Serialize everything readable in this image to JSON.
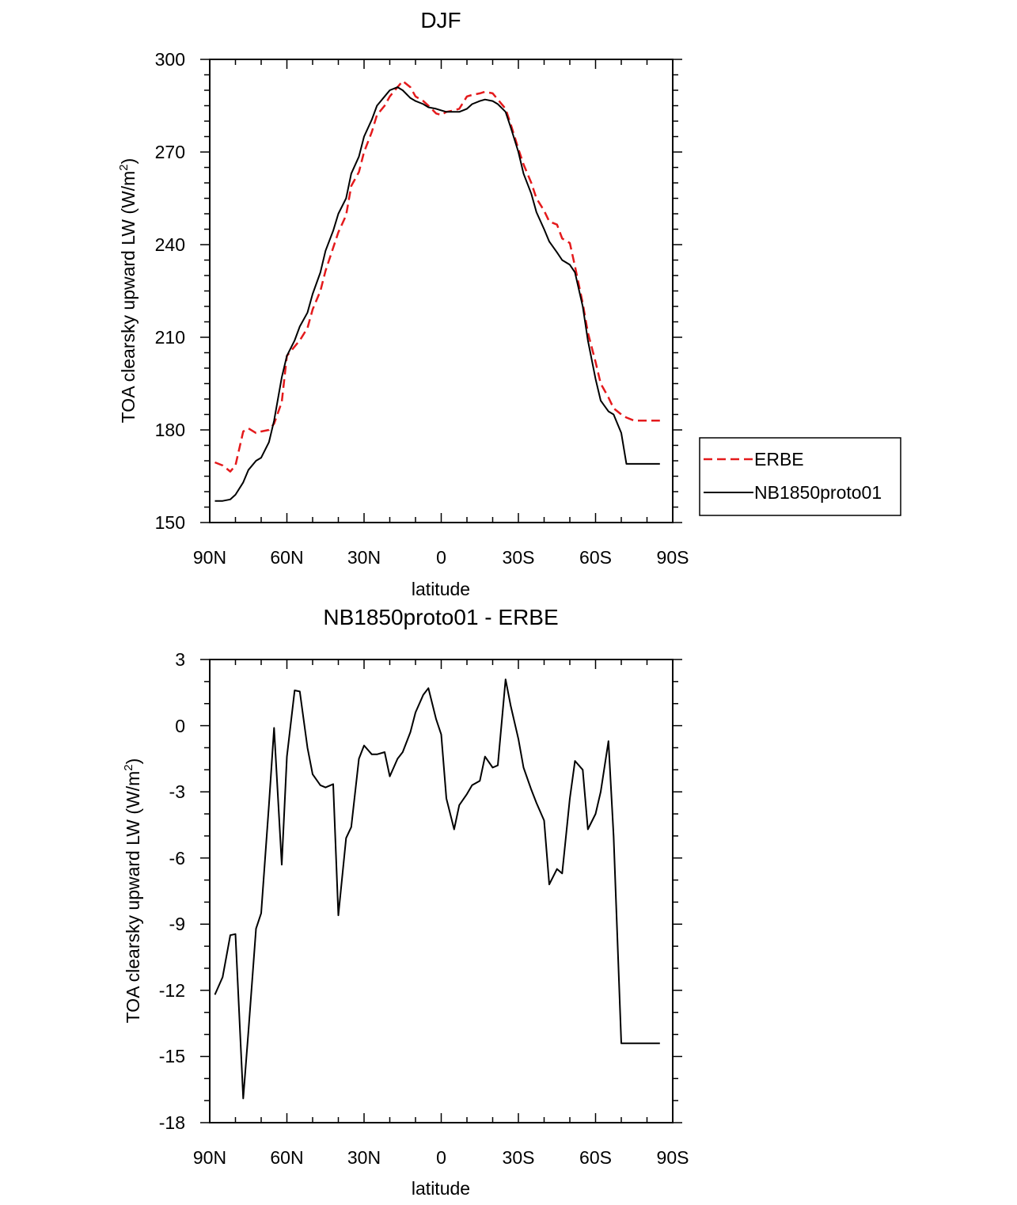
{
  "chart_data": [
    {
      "type": "line",
      "title": "DJF",
      "xlabel": "latitude",
      "ylabel": "TOA clearsky upward LW (W/m",
      "ylabel_superscript": "2",
      "ylabel_suffix": ")",
      "xlim": [
        90,
        -90
      ],
      "ylim": [
        150,
        300
      ],
      "xticks": [
        90,
        60,
        30,
        0,
        -30,
        -60,
        -90
      ],
      "xtick_labels": [
        "90N",
        "60N",
        "30N",
        "0",
        "30S",
        "60S",
        "90S"
      ],
      "yticks": [
        150,
        180,
        210,
        240,
        270,
        300
      ],
      "ytick_labels": [
        "150",
        "180",
        "210",
        "240",
        "270",
        "300"
      ],
      "legend_position": "outside-right",
      "series": [
        {
          "name": "ERBE",
          "color": "#e41a1c",
          "style": "dashed",
          "x": [
            88,
            85,
            82,
            80,
            77,
            75,
            72,
            70,
            67,
            65,
            62,
            60,
            57,
            55,
            52,
            50,
            47,
            45,
            42,
            40,
            37,
            35,
            32,
            30,
            27,
            25,
            22,
            20,
            17,
            15,
            12,
            10,
            7,
            5,
            2,
            0,
            -2,
            -5,
            -7,
            -10,
            -12,
            -15,
            -17,
            -20,
            -22,
            -25,
            -27,
            -30,
            -32,
            -35,
            -37,
            -40,
            -42,
            -45,
            -47,
            -50,
            -52,
            -55,
            -57,
            -60,
            -62,
            -65,
            -67,
            -70,
            -72,
            -75,
            -77,
            -80,
            -82,
            -85,
            -88
          ],
          "values": [
            169.5,
            168.5,
            166.5,
            168.5,
            179.5,
            180.5,
            179.0,
            179.5,
            180.0,
            182.0,
            189.0,
            204.0,
            207.0,
            209.0,
            213.0,
            219.0,
            225.0,
            231.5,
            239.0,
            244.0,
            249.5,
            259.0,
            263.5,
            270.0,
            276.5,
            282.0,
            285.0,
            288.0,
            291.0,
            293.0,
            291.0,
            288.0,
            286.5,
            285.0,
            282.5,
            282.0,
            283.0,
            283.5,
            284.0,
            288.0,
            288.5,
            289.0,
            289.5,
            289.0,
            287.0,
            284.0,
            279.0,
            271.0,
            266.0,
            260.0,
            255.0,
            251.0,
            247.5,
            246.5,
            242.0,
            240.5,
            233.0,
            221.0,
            211.5,
            202.0,
            195.0,
            190.5,
            187.0,
            185.0,
            184.0,
            183.0,
            183.0,
            183.0,
            183.0,
            183.0,
            183.0
          ]
        },
        {
          "name": "NB1850proto01",
          "color": "#000000",
          "style": "solid",
          "x": [
            88,
            85,
            82,
            80,
            77,
            75,
            72,
            70,
            67,
            65,
            62,
            60,
            57,
            55,
            52,
            50,
            47,
            45,
            42,
            40,
            37,
            35,
            32,
            30,
            27,
            25,
            22,
            20,
            17,
            15,
            12,
            10,
            7,
            5,
            2,
            0,
            -2,
            -5,
            -7,
            -10,
            -12,
            -15,
            -17,
            -20,
            -22,
            -25,
            -27,
            -30,
            -32,
            -35,
            -37,
            -40,
            -42,
            -45,
            -47,
            -50,
            -52,
            -55,
            -57,
            -60,
            -62,
            -65,
            -67,
            -70,
            -72,
            -75,
            -77,
            -80,
            -82,
            -85,
            -88
          ],
          "values": [
            157.0,
            157.0,
            157.5,
            159.0,
            163.0,
            167.0,
            170.0,
            171.0,
            176.0,
            183.0,
            197.0,
            204.0,
            209.0,
            213.5,
            218.0,
            224.0,
            231.0,
            238.0,
            244.5,
            250.0,
            255.0,
            263.0,
            268.5,
            275.0,
            280.5,
            285.0,
            288.0,
            290.0,
            291.0,
            290.0,
            287.5,
            286.5,
            285.5,
            284.5,
            284.0,
            283.5,
            283.0,
            283.0,
            283.0,
            284.0,
            285.5,
            286.5,
            287.0,
            286.5,
            285.5,
            283.0,
            278.0,
            270.0,
            263.0,
            256.5,
            250.5,
            245.0,
            241.0,
            237.5,
            235.0,
            233.5,
            231.0,
            220.0,
            209.0,
            196.5,
            189.5,
            186.0,
            185.0,
            179.0,
            169.0,
            169.0,
            169.0,
            169.0,
            169.0,
            169.0,
            169.0
          ]
        }
      ]
    },
    {
      "type": "line",
      "title": "NB1850proto01 - ERBE",
      "xlabel": "latitude",
      "ylabel": "TOA clearsky upward LW (W/m",
      "ylabel_superscript": "2",
      "ylabel_suffix": ")",
      "xlim": [
        90,
        -90
      ],
      "ylim": [
        -18,
        3
      ],
      "xticks": [
        90,
        60,
        30,
        0,
        -30,
        -60,
        -90
      ],
      "xtick_labels": [
        "90N",
        "60N",
        "30N",
        "0",
        "30S",
        "60S",
        "90S"
      ],
      "yticks": [
        3,
        0,
        -3,
        -6,
        -9,
        -12,
        -15,
        -18
      ],
      "ytick_labels": [
        "3",
        "0",
        "-3",
        "-6",
        "-9",
        "-12",
        "-15",
        "-18"
      ],
      "series": [
        {
          "name": "NB1850proto01 - ERBE",
          "color": "#000000",
          "style": "solid",
          "x": [
            88,
            85,
            82,
            80,
            77,
            75,
            72,
            70,
            67,
            65,
            62,
            60,
            57,
            55,
            52,
            50,
            47,
            45,
            42,
            40,
            37,
            35,
            32,
            30,
            27,
            25,
            22,
            20,
            17,
            15,
            12,
            10,
            7,
            5,
            2,
            0,
            -2,
            -5,
            -7,
            -10,
            -12,
            -15,
            -17,
            -20,
            -22,
            -25,
            -27,
            -30,
            -32,
            -35,
            -37,
            -40,
            -42,
            -45,
            -47,
            -50,
            -52,
            -55,
            -57,
            -60,
            -62,
            -65,
            -67,
            -70,
            -72,
            -75,
            -77,
            -80,
            -82,
            -85,
            -88
          ],
          "values": [
            -12.2,
            -11.4,
            -9.5,
            -9.45,
            -16.9,
            -13.9,
            -9.2,
            -8.5,
            -3.6,
            -0.1,
            -6.3,
            -1.4,
            1.6,
            1.55,
            -1.0,
            -2.2,
            -2.7,
            -2.8,
            -2.65,
            -8.6,
            -5.1,
            -4.6,
            -1.5,
            -0.9,
            -1.3,
            -1.3,
            -1.2,
            -2.3,
            -1.5,
            -1.2,
            -0.3,
            0.6,
            1.4,
            1.7,
            0.3,
            -0.4,
            -3.3,
            -4.7,
            -3.6,
            -3.1,
            -2.7,
            -2.5,
            -1.4,
            -1.9,
            -1.8,
            2.1,
            0.9,
            -0.6,
            -1.9,
            -2.9,
            -3.5,
            -4.3,
            -7.2,
            -6.5,
            -6.7,
            -3.3,
            -1.6,
            -2.0,
            -4.7,
            -4.0,
            -3.0,
            -0.7,
            -5.0,
            -14.4,
            -14.4,
            -14.4,
            -14.4,
            -14.4,
            -14.4,
            -14.4,
            -14.4
          ]
        }
      ]
    }
  ]
}
